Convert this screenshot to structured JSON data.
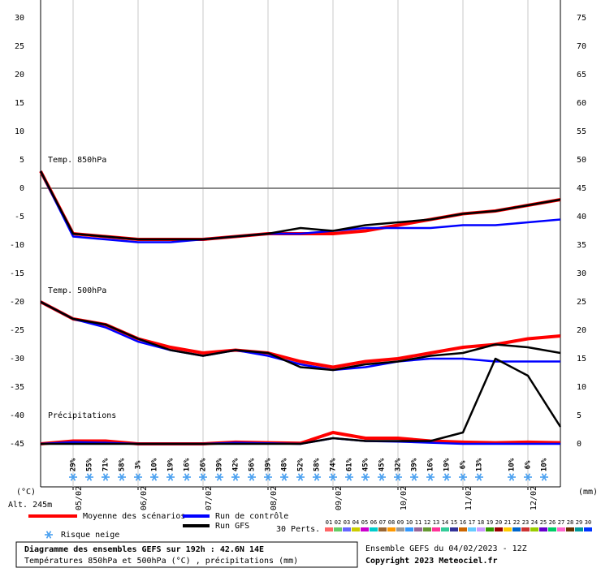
{
  "chart_data": {
    "type": "line",
    "x": [
      0,
      12,
      24,
      36,
      48,
      60,
      72,
      84,
      96,
      108,
      120,
      132,
      144,
      156,
      168,
      180,
      192
    ],
    "xlim": [
      0,
      192
    ],
    "xticks": [
      {
        "value": 12,
        "label": "05/02"
      },
      {
        "value": 36,
        "label": "06/02"
      },
      {
        "value": 60,
        "label": "07/02"
      },
      {
        "value": 84,
        "label": "08/02"
      },
      {
        "value": 108,
        "label": "09/02"
      },
      {
        "value": 132,
        "label": "10/02"
      },
      {
        "value": 156,
        "label": "11/02"
      },
      {
        "value": 180,
        "label": "12/02"
      }
    ],
    "ylim": [
      -45,
      30
    ],
    "yticks": [
      -45,
      -40,
      -35,
      -30,
      -25,
      -20,
      -15,
      -10,
      -5,
      0,
      5,
      10,
      15,
      20,
      25,
      30
    ],
    "y2lim": [
      0,
      75
    ],
    "y2ticks": [
      0,
      5,
      10,
      15,
      20,
      25,
      30,
      35,
      40,
      45,
      50,
      55,
      60,
      65,
      70,
      75
    ],
    "y_unit": "(°C)",
    "y2_unit": "(mm)",
    "altitude": "Alt. 245m",
    "annotations": [
      {
        "text": "Temp. 850hPa",
        "y": 5
      },
      {
        "text": "Temp. 500hPa",
        "y": -18
      },
      {
        "text": "Précipitations",
        "y": -40
      }
    ],
    "series": [
      {
        "name": "Moyenne des scénarios",
        "color": "#ff0000",
        "values": [
          3,
          -8,
          -8.5,
          -9,
          -9,
          -9,
          -8.5,
          -8,
          -8,
          -8,
          -7.5,
          -6.5,
          -5.5,
          -4.5,
          -4,
          -3,
          -2
        ]
      },
      {
        "name": "Run de contrôle",
        "color": "#0000ff",
        "values": [
          3,
          -8.5,
          -9,
          -9.5,
          -9.5,
          -9,
          -8.5,
          -8,
          -8,
          -7.5,
          -7,
          -7,
          -7,
          -6.5,
          -6.5,
          -6,
          -5.5
        ]
      },
      {
        "name": "Run GFS",
        "color": "#000000",
        "values": [
          3,
          -8,
          -8.5,
          -9,
          -9,
          -9,
          -8.5,
          -8,
          -7,
          -7.5,
          -6.5,
          -6,
          -5.5,
          -4.5,
          -4,
          -3,
          -2
        ]
      },
      {
        "name": null,
        "color": "#ff0000",
        "values": [
          -20,
          -23,
          -24,
          -26.5,
          -28,
          -29,
          -28.5,
          -29,
          -30.5,
          -31.5,
          -30.5,
          -30,
          -29,
          -28,
          -27.5,
          -26.5,
          -26
        ]
      },
      {
        "name": null,
        "color": "#0000ff",
        "values": [
          -20,
          -23,
          -24.5,
          -27,
          -28.5,
          -29.5,
          -28.5,
          -29.5,
          -31,
          -32,
          -31.5,
          -30.5,
          -30,
          -30,
          -30.5,
          -30.5,
          -30.5
        ]
      },
      {
        "name": null,
        "color": "#000000",
        "values": [
          -20,
          -23,
          -24,
          -26.5,
          -28.5,
          -29.5,
          -28.5,
          -29,
          -31.5,
          -32,
          -31,
          -30.5,
          -29.5,
          -29,
          -27.5,
          -28,
          -29
        ]
      },
      {
        "name": null,
        "color": "#ff0000",
        "axis": "y2",
        "values": [
          0,
          0.5,
          0.5,
          0,
          0,
          0,
          0.3,
          0.2,
          0.1,
          2,
          1,
          1,
          0.5,
          0.3,
          0.2,
          0.3,
          0.2
        ]
      },
      {
        "name": null,
        "color": "#0000ff",
        "axis": "y2",
        "values": [
          0,
          0.3,
          0.2,
          0,
          0,
          0,
          0.2,
          0.1,
          0,
          1,
          0.5,
          0.4,
          0.2,
          0,
          0,
          0,
          0
        ]
      },
      {
        "name": null,
        "color": "#000000",
        "axis": "y2",
        "values": [
          0,
          0,
          0,
          0,
          0,
          0,
          0,
          0,
          0,
          1,
          0.5,
          0.5,
          0.5,
          2,
          15,
          12,
          3
        ]
      }
    ],
    "snow_risk_label": "Risque neige",
    "snow_risk": [
      "29%",
      "55%",
      "71%",
      "58%",
      "3%",
      "10%",
      "19%",
      "16%",
      "26%",
      "39%",
      "42%",
      "56%",
      "39%",
      "48%",
      "52%",
      "58%",
      "74%",
      "61%",
      "45%",
      "45%",
      "32%",
      "39%",
      "16%",
      "19%",
      "6%",
      "13%",
      null,
      "10%",
      "6%",
      "10%"
    ],
    "perturbations_label": "30 Perts.",
    "perturbations": [
      {
        "name": "01",
        "color": "#ff6666"
      },
      {
        "name": "02",
        "color": "#66cc66"
      },
      {
        "name": "03",
        "color": "#6666ff"
      },
      {
        "name": "04",
        "color": "#cccc00"
      },
      {
        "name": "05",
        "color": "#cc00cc"
      },
      {
        "name": "06",
        "color": "#00cccc"
      },
      {
        "name": "07",
        "color": "#996633"
      },
      {
        "name": "08",
        "color": "#ff9900"
      },
      {
        "name": "09",
        "color": "#999999"
      },
      {
        "name": "10",
        "color": "#3399ff"
      },
      {
        "name": "11",
        "color": "#996699"
      },
      {
        "name": "12",
        "color": "#669933"
      },
      {
        "name": "13",
        "color": "#ff3399"
      },
      {
        "name": "14",
        "color": "#33cc99"
      },
      {
        "name": "15",
        "color": "#333399"
      },
      {
        "name": "16",
        "color": "#cc6600"
      },
      {
        "name": "17",
        "color": "#66ccff"
      },
      {
        "name": "18",
        "color": "#cc99ff"
      },
      {
        "name": "19",
        "color": "#339900"
      },
      {
        "name": "20",
        "color": "#990000"
      },
      {
        "name": "21",
        "color": "#ffcc00"
      },
      {
        "name": "22",
        "color": "#0066cc"
      },
      {
        "name": "23",
        "color": "#cc3333"
      },
      {
        "name": "24",
        "color": "#99cc00"
      },
      {
        "name": "25",
        "color": "#6600cc"
      },
      {
        "name": "26",
        "color": "#00cc66"
      },
      {
        "name": "27",
        "color": "#ff66cc"
      },
      {
        "name": "28",
        "color": "#663300"
      },
      {
        "name": "29",
        "color": "#009999"
      },
      {
        "name": "30",
        "color": "#0033ff"
      }
    ],
    "footer": {
      "title": "Diagramme des ensembles GEFS sur 192h : 42.6N 14E",
      "subtitle": "Températures 850hPa et 500hPa (°C) , précipitations (mm)",
      "run": "Ensemble GEFS du 04/02/2023 - 12Z",
      "copyright": "Copyright 2023 Meteociel.fr"
    }
  }
}
